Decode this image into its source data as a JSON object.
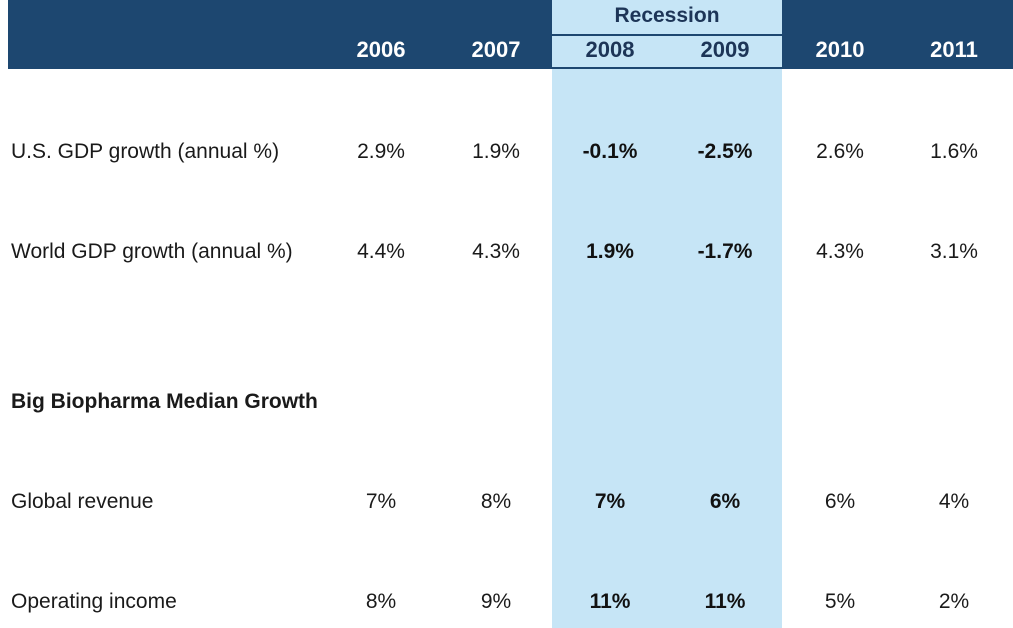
{
  "chart_data": {
    "type": "table",
    "group_label": "Recession",
    "recession_years": [
      "2008",
      "2009"
    ],
    "columns": [
      "2006",
      "2007",
      "2008",
      "2009",
      "2010",
      "2011"
    ],
    "rows": [
      {
        "label": "U.S. GDP growth (annual %)",
        "values": [
          "2.9%",
          "1.9%",
          "-0.1%",
          "-2.5%",
          "2.6%",
          "1.6%"
        ]
      },
      {
        "label": "World GDP growth (annual %)",
        "values": [
          "4.4%",
          "4.3%",
          "1.9%",
          "-1.7%",
          "4.3%",
          "3.1%"
        ]
      },
      {
        "label": "Big Biopharma Median Growth",
        "section": true,
        "values": []
      },
      {
        "label": "Global revenue",
        "values": [
          "7%",
          "8%",
          "7%",
          "6%",
          "6%",
          "4%"
        ]
      },
      {
        "label": "Operating income",
        "values": [
          "8%",
          "9%",
          "11%",
          "11%",
          "5%",
          "2%"
        ]
      }
    ]
  },
  "colors": {
    "header_bg": "#1d4770",
    "recession_bg": "#c6e5f6",
    "header_text": "#ffffff",
    "recession_text": "#1d3557"
  }
}
